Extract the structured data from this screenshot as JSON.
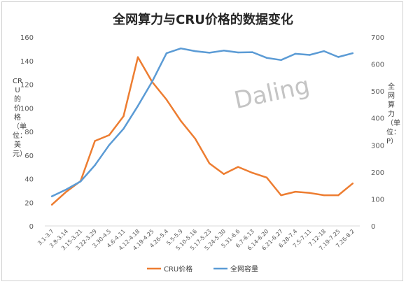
{
  "chart_data": {
    "type": "line",
    "title": "全网算力与CRU价格的数据变化",
    "ylabel_left": "CRU的价格（单位：美元）",
    "ylabel_right": "全网算力（单位：P）",
    "watermark": "Daling",
    "categories": [
      "3.1-3.7",
      "3.8-3.14",
      "3.15-3.21",
      "3.22-3.29",
      "3.30-4.5",
      "4.6-4.11",
      "4.12-4.18",
      "4.19-4.25",
      "4.26-5.4",
      "5.5-5.9",
      "5.10-5.16",
      "5.17-5.23",
      "5.24-5.30",
      "5.31-6.6",
      "6.7-6.13",
      "6.14-6.20",
      "6.21-6.27",
      "6.28-7.4",
      "7.5-7.11",
      "7.12-18",
      "7.19-7.25",
      "7.26-8.2"
    ],
    "y_left": {
      "min": 0,
      "max": 160,
      "step": 20,
      "ticks": [
        "0",
        "20",
        "40",
        "60",
        "80",
        "100",
        "120",
        "140",
        "160"
      ]
    },
    "y_right": {
      "min": 0,
      "max": 700,
      "step": 100,
      "ticks": [
        "0",
        "100",
        "200",
        "300",
        "400",
        "500",
        "600",
        "700"
      ]
    },
    "grid": false,
    "legend_position": "bottom",
    "series": [
      {
        "name": "CRU价格",
        "axis": "left",
        "color": "#ED7D31",
        "values": [
          18,
          29,
          38,
          72,
          77,
          93,
          143,
          122,
          107,
          89,
          74,
          53,
          44,
          50,
          45,
          41,
          26,
          29,
          28,
          26,
          26,
          36
        ]
      },
      {
        "name": "全网容量",
        "axis": "right",
        "color": "#5B9BD5",
        "values": [
          110,
          135,
          165,
          225,
          300,
          360,
          445,
          535,
          640,
          658,
          648,
          642,
          650,
          643,
          644,
          623,
          615,
          638,
          634,
          648,
          626,
          640
        ]
      }
    ]
  }
}
